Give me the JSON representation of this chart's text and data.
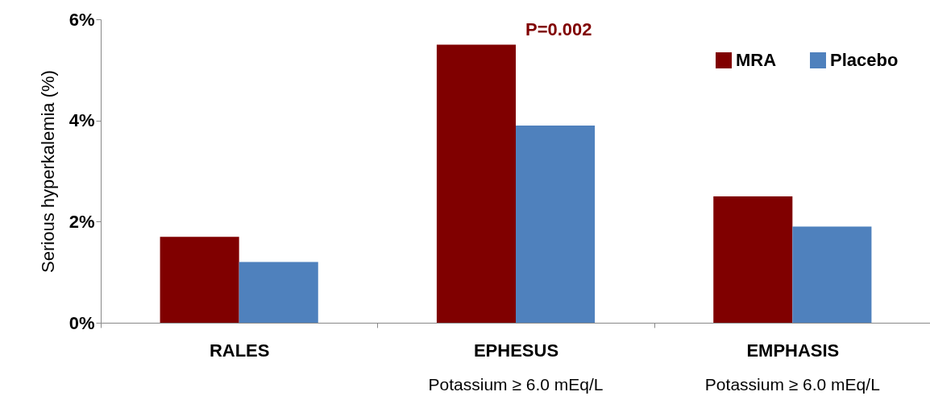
{
  "chart_data": {
    "type": "bar",
    "ylabel": "Serious hyperkalemia (%)",
    "categories": [
      "RALES",
      "EPHESUS",
      "EMPHASIS"
    ],
    "series": [
      {
        "name": "MRA",
        "color": "#800000",
        "values": [
          1.7,
          5.5,
          2.5
        ]
      },
      {
        "name": "Placebo",
        "color": "#4f81bd",
        "values": [
          1.2,
          3.9,
          1.9
        ]
      }
    ],
    "ylim": [
      0,
      6
    ],
    "yticks": [
      {
        "value": 0,
        "label": "0%"
      },
      {
        "value": 2,
        "label": "2%"
      },
      {
        "value": 4,
        "label": "4%"
      },
      {
        "value": 6,
        "label": "6%"
      }
    ],
    "annotations": [
      {
        "text": "P=0.002",
        "x": "EPHESUS",
        "y": 5.5
      },
      "Potassium ≥ 6.0 mEq/L",
      "Potassium ≥ 6.0 mEq/L"
    ],
    "grid": false,
    "legend": "top right"
  }
}
